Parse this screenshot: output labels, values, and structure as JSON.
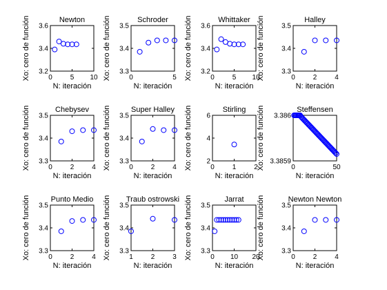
{
  "colors": {
    "marker": "#0000ff",
    "axis": "#000000",
    "background": "#ffffff"
  },
  "chart_data": [
    {
      "type": "scatter",
      "title": "Newton",
      "xlabel": "N: iteración",
      "ylabel": "Xo: cero de función",
      "xlim": [
        0,
        10
      ],
      "ylim": [
        3.2,
        3.6
      ],
      "xticks": [
        0,
        5,
        10
      ],
      "yticks": [
        3.2,
        3.4,
        3.6
      ],
      "xtick_labels": [
        "0",
        "5",
        "10"
      ],
      "ytick_labels": [
        "3.2",
        "3.4",
        "3.6"
      ],
      "marker": "o",
      "grid": false,
      "x": [
        1,
        2,
        3,
        4,
        5,
        6
      ],
      "y": [
        3.39,
        3.46,
        3.44,
        3.435,
        3.435,
        3.435
      ]
    },
    {
      "type": "scatter",
      "title": "Schroder",
      "xlabel": "N: iteración",
      "ylabel": "Xo: cero de función",
      "xlim": [
        0,
        5
      ],
      "ylim": [
        3.3,
        3.5
      ],
      "xticks": [
        0,
        5
      ],
      "yticks": [
        3.3,
        3.4,
        3.5
      ],
      "xtick_labels": [
        "0",
        "5"
      ],
      "ytick_labels": [
        "3.3",
        "3.4",
        "3.5"
      ],
      "marker": "o",
      "grid": false,
      "x": [
        1,
        2,
        3,
        4,
        5
      ],
      "y": [
        3.385,
        3.425,
        3.435,
        3.435,
        3.435
      ]
    },
    {
      "type": "scatter",
      "title": "Whittaker",
      "xlabel": "N: iteración",
      "ylabel": "Xo: cero de función",
      "xlim": [
        0,
        10
      ],
      "ylim": [
        3.2,
        3.6
      ],
      "xticks": [
        0,
        5,
        10
      ],
      "yticks": [
        3.2,
        3.4,
        3.6
      ],
      "xtick_labels": [
        "0",
        "5",
        "10"
      ],
      "ytick_labels": [
        "3.2",
        "3.4",
        "3.6"
      ],
      "marker": "o",
      "grid": false,
      "x": [
        1,
        2,
        3,
        4,
        5,
        6,
        7
      ],
      "y": [
        3.39,
        3.48,
        3.455,
        3.44,
        3.435,
        3.435,
        3.435
      ]
    },
    {
      "type": "scatter",
      "title": "Halley",
      "xlabel": "N: iteración",
      "ylabel": "Xo: cero de función",
      "xlim": [
        0,
        4
      ],
      "ylim": [
        3.3,
        3.5
      ],
      "xticks": [
        0,
        2,
        4
      ],
      "yticks": [
        3.3,
        3.4,
        3.5
      ],
      "xtick_labels": [
        "0",
        "2",
        "4"
      ],
      "ytick_labels": [
        "3.3",
        "3.4",
        "3.5"
      ],
      "marker": "o",
      "grid": false,
      "x": [
        1,
        2,
        3,
        4
      ],
      "y": [
        3.385,
        3.435,
        3.435,
        3.435
      ]
    },
    {
      "type": "scatter",
      "title": "Chebysev",
      "xlabel": "N: iteración",
      "ylabel": "Xo: cero de función",
      "xlim": [
        0,
        4
      ],
      "ylim": [
        3.3,
        3.5
      ],
      "xticks": [
        0,
        2,
        4
      ],
      "yticks": [
        3.3,
        3.4,
        3.5
      ],
      "xtick_labels": [
        "0",
        "2",
        "4"
      ],
      "ytick_labels": [
        "3.3",
        "3.4",
        "3.5"
      ],
      "marker": "o",
      "grid": false,
      "x": [
        1,
        2,
        3,
        4
      ],
      "y": [
        3.385,
        3.43,
        3.435,
        3.435
      ]
    },
    {
      "type": "scatter",
      "title": "Super Halley",
      "xlabel": "N: iteración",
      "ylabel": "Xo: cero de función",
      "xlim": [
        0,
        4
      ],
      "ylim": [
        3.3,
        3.5
      ],
      "xticks": [
        0,
        2,
        4
      ],
      "yticks": [
        3.3,
        3.4,
        3.5
      ],
      "xtick_labels": [
        "0",
        "2",
        "4"
      ],
      "ytick_labels": [
        "3.3",
        "3.4",
        "3.5"
      ],
      "marker": "o",
      "grid": false,
      "x": [
        1,
        2,
        3,
        4
      ],
      "y": [
        3.385,
        3.44,
        3.435,
        3.435
      ]
    },
    {
      "type": "scatter",
      "title": "Stirling",
      "xlabel": "N: iteración",
      "ylabel": "Xo: cero de función",
      "xlim": [
        0,
        2
      ],
      "ylim": [
        2,
        6
      ],
      "xticks": [
        0,
        1,
        2
      ],
      "yticks": [
        2,
        4,
        6
      ],
      "xtick_labels": [
        "0",
        "1",
        "2"
      ],
      "ytick_labels": [
        "2",
        "4",
        "6"
      ],
      "marker": "o",
      "grid": false,
      "x": [
        1
      ],
      "y": [
        3.44
      ]
    },
    {
      "type": "scatter",
      "title": "Steffensen",
      "xlabel": "N: iteración",
      "ylabel": "Xo: cero de función",
      "xlim": [
        0,
        50
      ],
      "ylim": [
        3.3859,
        3.386
      ],
      "xticks": [
        0,
        50
      ],
      "yticks": [
        3.3859,
        3.386
      ],
      "xtick_labels": [
        "0",
        "50"
      ],
      "ytick_labels": [
        "3.3859",
        "3.386"
      ],
      "marker": "o",
      "grid": false,
      "x": [
        1,
        2,
        3,
        4,
        5,
        6,
        7,
        8,
        9,
        10,
        11,
        12,
        13,
        14,
        15,
        16,
        17,
        18,
        19,
        20,
        21,
        22,
        23,
        24,
        25,
        26,
        27,
        28,
        29,
        30,
        31,
        32,
        33,
        34,
        35,
        36,
        37,
        38,
        39,
        40,
        41,
        42,
        43,
        44,
        45,
        46,
        47,
        48,
        49,
        50
      ],
      "y": [
        3.386,
        3.386,
        3.386,
        3.386,
        3.386,
        3.386,
        3.386,
        3.386,
        3.385997,
        3.385995,
        3.385993,
        3.385991,
        3.385989,
        3.385987,
        3.385985,
        3.385983,
        3.385981,
        3.385979,
        3.385977,
        3.385975,
        3.385973,
        3.385971,
        3.385969,
        3.385967,
        3.385965,
        3.385963,
        3.385961,
        3.385959,
        3.385957,
        3.385955,
        3.385953,
        3.385951,
        3.385949,
        3.385947,
        3.385945,
        3.385943,
        3.385941,
        3.385939,
        3.385937,
        3.385935,
        3.385933,
        3.385931,
        3.385929,
        3.385927,
        3.385925,
        3.385923,
        3.385921,
        3.385919,
        3.385917,
        3.385915
      ]
    },
    {
      "type": "scatter",
      "title": "Punto Medio",
      "xlabel": "N: iteración",
      "ylabel": "Xo: cero de función",
      "xlim": [
        0,
        4
      ],
      "ylim": [
        3.3,
        3.5
      ],
      "xticks": [
        0,
        2,
        4
      ],
      "yticks": [
        3.3,
        3.4,
        3.5
      ],
      "xtick_labels": [
        "0",
        "2",
        "4"
      ],
      "ytick_labels": [
        "3.3",
        "3.4",
        "3.5"
      ],
      "marker": "o",
      "grid": false,
      "x": [
        1,
        2,
        3,
        4
      ],
      "y": [
        3.385,
        3.43,
        3.435,
        3.435
      ]
    },
    {
      "type": "scatter",
      "title": "Traub ostrowski",
      "xlabel": "N: iteración",
      "ylabel": "Xo: cero de función",
      "xlim": [
        1,
        3
      ],
      "ylim": [
        3.3,
        3.5
      ],
      "xticks": [
        1,
        2,
        3
      ],
      "yticks": [
        3.3,
        3.4,
        3.5
      ],
      "xtick_labels": [
        "1",
        "2",
        "3"
      ],
      "ytick_labels": [
        "3.3",
        "3.4",
        "3.5"
      ],
      "marker": "o",
      "grid": false,
      "x": [
        1,
        2,
        3
      ],
      "y": [
        3.385,
        3.44,
        3.435
      ]
    },
    {
      "type": "scatter",
      "title": "Jarrat",
      "xlabel": "N: iteración",
      "ylabel": "Xo: cero de función",
      "xlim": [
        0,
        20
      ],
      "ylim": [
        3.3,
        3.5
      ],
      "xticks": [
        0,
        10,
        20
      ],
      "yticks": [
        3.3,
        3.4,
        3.5
      ],
      "xtick_labels": [
        "0",
        "10",
        "20"
      ],
      "ytick_labels": [
        "3.3",
        "3.4",
        "3.5"
      ],
      "marker": "o",
      "grid": false,
      "x": [
        1,
        2,
        3,
        4,
        5,
        6,
        7,
        8,
        9,
        10,
        11,
        12
      ],
      "y": [
        3.385,
        3.435,
        3.435,
        3.435,
        3.435,
        3.435,
        3.435,
        3.435,
        3.435,
        3.435,
        3.435,
        3.435
      ]
    },
    {
      "type": "scatter",
      "title": "Newton Newton",
      "xlabel": "N: iteración",
      "ylabel": "Xo: cero de función",
      "xlim": [
        0,
        4
      ],
      "ylim": [
        3.3,
        3.5
      ],
      "xticks": [
        0,
        2,
        4
      ],
      "yticks": [
        3.3,
        3.4,
        3.5
      ],
      "xtick_labels": [
        "0",
        "2",
        "4"
      ],
      "ytick_labels": [
        "3.3",
        "3.4",
        "3.5"
      ],
      "marker": "o",
      "grid": false,
      "x": [
        1,
        2,
        3,
        4
      ],
      "y": [
        3.385,
        3.435,
        3.435,
        3.435
      ]
    }
  ]
}
